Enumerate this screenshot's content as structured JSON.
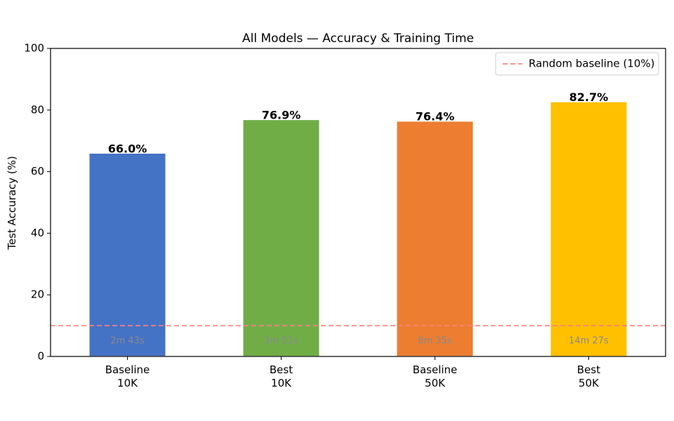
{
  "chart_data": {
    "type": "bar",
    "title": "All Models — Accuracy & Training Time",
    "ylabel": "Test Accuracy (%)",
    "xlabel": "",
    "ylim": [
      0,
      100
    ],
    "yticks": [
      0,
      20,
      40,
      60,
      80,
      100
    ],
    "grid": false,
    "legend_position": "top-right",
    "categories": [
      [
        "Baseline",
        "10K"
      ],
      [
        "Best",
        "10K"
      ],
      [
        "Baseline",
        "50K"
      ],
      [
        "Best",
        "50K"
      ]
    ],
    "values": [
      66.0,
      76.9,
      76.4,
      82.7
    ],
    "value_labels": [
      "66.0%",
      "76.9%",
      "76.4%",
      "82.7%"
    ],
    "training_times": [
      "2m 43s",
      "3m 51s",
      "8m 35s",
      "14m 27s"
    ],
    "bar_colors": [
      "#4472C4",
      "#70AD47",
      "#ED7D31",
      "#FFC000"
    ],
    "reference_line": {
      "y": 10,
      "label": "Random baseline (10%)",
      "color": "#ff7f7f",
      "style": "dashed"
    }
  }
}
